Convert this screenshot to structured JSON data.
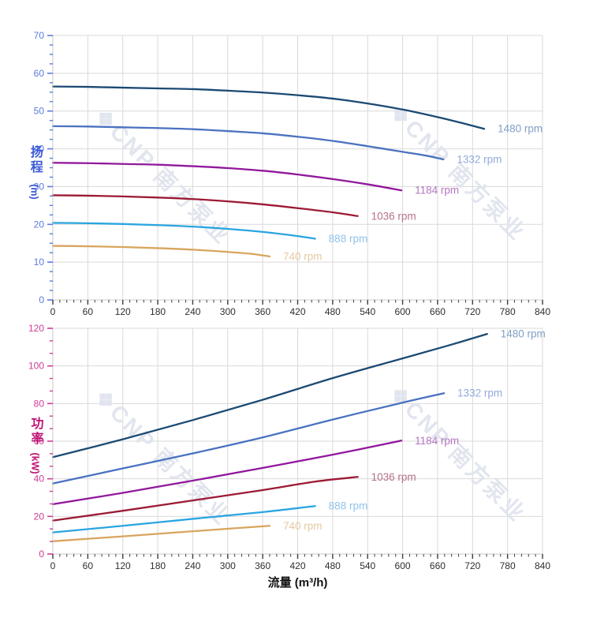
{
  "x_axis_title": "流量 (m³/h)",
  "x_tick_text_color": "#2e2e2e",
  "grid_color": "#d9d9d9",
  "axis_line_color": "#c8c8c8",
  "watermark": {
    "logo": "❖",
    "text": "CNP 南方泵业",
    "color": "#e0e4ee"
  },
  "chart_data": [
    {
      "type": "line",
      "title": "",
      "xlabel": "流量 (m³/h)",
      "ylabel": "扬程 (m)",
      "ylabel_main": "扬程",
      "ylabel_unit": "(m)",
      "xlim": [
        0,
        840
      ],
      "ylim": [
        0,
        70
      ],
      "x_major_step": 60,
      "x_minor_step": 12,
      "y_major_step": 10,
      "y_minor_step": 2.5,
      "grid": true,
      "legend_position": "end-of-line-labels",
      "x_tick_labels": [
        0,
        60,
        120,
        180,
        240,
        300,
        360,
        420,
        480,
        540,
        600,
        660,
        720,
        780,
        840
      ],
      "y_tick_labels": [
        0,
        10,
        20,
        30,
        40,
        50,
        60,
        70
      ],
      "axis_tick_color": "#5b7be0",
      "axis_title_color": "#3a59d6",
      "series": [
        {
          "name": "1480 rpm",
          "label": "1480 rpm",
          "color": "#1b4a73",
          "label_color": "#7f9fc4",
          "points": [
            [
              0,
              56.5
            ],
            [
              60,
              56.4
            ],
            [
              120,
              56.2
            ],
            [
              180,
              56.0
            ],
            [
              240,
              55.8
            ],
            [
              300,
              55.4
            ],
            [
              360,
              54.9
            ],
            [
              420,
              54.2
            ],
            [
              480,
              53.3
            ],
            [
              540,
              52.0
            ],
            [
              600,
              50.4
            ],
            [
              660,
              48.4
            ],
            [
              700,
              46.9
            ],
            [
              740,
              45.3
            ]
          ]
        },
        {
          "name": "1332 rpm",
          "label": "1332 rpm",
          "color": "#4a72c0",
          "label_color": "#93a9d9",
          "points": [
            [
              0,
              46.0
            ],
            [
              60,
              45.9
            ],
            [
              120,
              45.7
            ],
            [
              180,
              45.5
            ],
            [
              240,
              45.2
            ],
            [
              300,
              44.7
            ],
            [
              360,
              44.1
            ],
            [
              420,
              43.2
            ],
            [
              480,
              42.1
            ],
            [
              540,
              40.7
            ],
            [
              600,
              39.2
            ],
            [
              640,
              38.2
            ],
            [
              670,
              37.2
            ]
          ]
        },
        {
          "name": "1184 rpm",
          "label": "1184 rpm",
          "color": "#91189c",
          "label_color": "#b377c0",
          "points": [
            [
              0,
              36.3
            ],
            [
              60,
              36.2
            ],
            [
              120,
              36.0
            ],
            [
              180,
              35.8
            ],
            [
              240,
              35.4
            ],
            [
              300,
              34.9
            ],
            [
              360,
              34.2
            ],
            [
              420,
              33.2
            ],
            [
              480,
              32.0
            ],
            [
              540,
              30.6
            ],
            [
              598,
              29.0
            ]
          ]
        },
        {
          "name": "1036 rpm",
          "label": "1036 rpm",
          "color": "#9c1a35",
          "label_color": "#b5708a",
          "points": [
            [
              0,
              27.7
            ],
            [
              60,
              27.6
            ],
            [
              120,
              27.4
            ],
            [
              180,
              27.1
            ],
            [
              240,
              26.7
            ],
            [
              300,
              26.1
            ],
            [
              360,
              25.3
            ],
            [
              420,
              24.3
            ],
            [
              480,
              23.2
            ],
            [
              523,
              22.2
            ]
          ]
        },
        {
          "name": "888 rpm",
          "label": "888 rpm",
          "color": "#2aa5e0",
          "label_color": "#8fc3ea",
          "points": [
            [
              0,
              20.4
            ],
            [
              60,
              20.3
            ],
            [
              120,
              20.1
            ],
            [
              180,
              19.8
            ],
            [
              240,
              19.4
            ],
            [
              300,
              18.8
            ],
            [
              360,
              18.0
            ],
            [
              410,
              17.1
            ],
            [
              450,
              16.2
            ]
          ]
        },
        {
          "name": "740 rpm",
          "label": "740 rpm",
          "color": "#d8a55e",
          "label_color": "#e5c9a1",
          "points": [
            [
              0,
              14.3
            ],
            [
              60,
              14.2
            ],
            [
              120,
              14.0
            ],
            [
              180,
              13.7
            ],
            [
              240,
              13.3
            ],
            [
              300,
              12.7
            ],
            [
              340,
              12.2
            ],
            [
              372,
              11.5
            ]
          ]
        }
      ]
    },
    {
      "type": "line",
      "title": "",
      "xlabel": "流量 (m³/h)",
      "ylabel": "功率 (kW)",
      "ylabel_main": "功率",
      "ylabel_unit": "(kW)",
      "xlim": [
        0,
        840
      ],
      "ylim": [
        0,
        120
      ],
      "x_major_step": 60,
      "x_minor_step": 12,
      "y_major_step": 20,
      "y_minor_step": 6.6667,
      "grid": true,
      "legend_position": "end-of-line-labels",
      "x_tick_labels": [
        0,
        60,
        120,
        180,
        240,
        300,
        360,
        420,
        480,
        540,
        600,
        660,
        720,
        780,
        840
      ],
      "y_tick_labels": [
        0,
        20,
        40,
        60,
        80,
        100,
        120
      ],
      "axis_tick_color": "#cf3d93",
      "axis_title_color": "#bf1374",
      "series": [
        {
          "name": "1480 rpm",
          "label": "1480 rpm",
          "color": "#1b4a73",
          "label_color": "#7f9fc4",
          "points": [
            [
              0,
              51.5
            ],
            [
              120,
              61.0
            ],
            [
              240,
              71.2
            ],
            [
              360,
              82.0
            ],
            [
              480,
              93.5
            ],
            [
              600,
              104.0
            ],
            [
              680,
              111.0
            ],
            [
              745,
              117.0
            ]
          ]
        },
        {
          "name": "1332 rpm",
          "label": "1332 rpm",
          "color": "#4a72c0",
          "label_color": "#93a9d9",
          "points": [
            [
              0,
              37.5
            ],
            [
              120,
              45.5
            ],
            [
              240,
              53.5
            ],
            [
              360,
              62.0
            ],
            [
              480,
              71.5
            ],
            [
              600,
              80.5
            ],
            [
              671,
              85.5
            ]
          ]
        },
        {
          "name": "1184 rpm",
          "label": "1184 rpm",
          "color": "#91189c",
          "label_color": "#b377c0",
          "points": [
            [
              0,
              26.5
            ],
            [
              120,
              32.5
            ],
            [
              240,
              39.0
            ],
            [
              360,
              45.8
            ],
            [
              480,
              52.8
            ],
            [
              598,
              60.3
            ]
          ]
        },
        {
          "name": "1036 rpm",
          "label": "1036 rpm",
          "color": "#9c1a35",
          "label_color": "#b5708a",
          "points": [
            [
              0,
              17.8
            ],
            [
              120,
              23.0
            ],
            [
              240,
              28.5
            ],
            [
              360,
              34.0
            ],
            [
              450,
              38.5
            ],
            [
              523,
              41.0
            ]
          ]
        },
        {
          "name": "888 rpm",
          "label": "888 rpm",
          "color": "#2aa5e0",
          "label_color": "#8fc3ea",
          "points": [
            [
              0,
              11.5
            ],
            [
              120,
              15.0
            ],
            [
              240,
              18.7
            ],
            [
              360,
              22.3
            ],
            [
              450,
              25.5
            ]
          ]
        },
        {
          "name": "740 rpm",
          "label": "740 rpm",
          "color": "#d8a55e",
          "label_color": "#e5c9a1",
          "points": [
            [
              0,
              6.8
            ],
            [
              120,
              9.4
            ],
            [
              240,
              12.1
            ],
            [
              372,
              15.0
            ]
          ]
        }
      ]
    }
  ]
}
